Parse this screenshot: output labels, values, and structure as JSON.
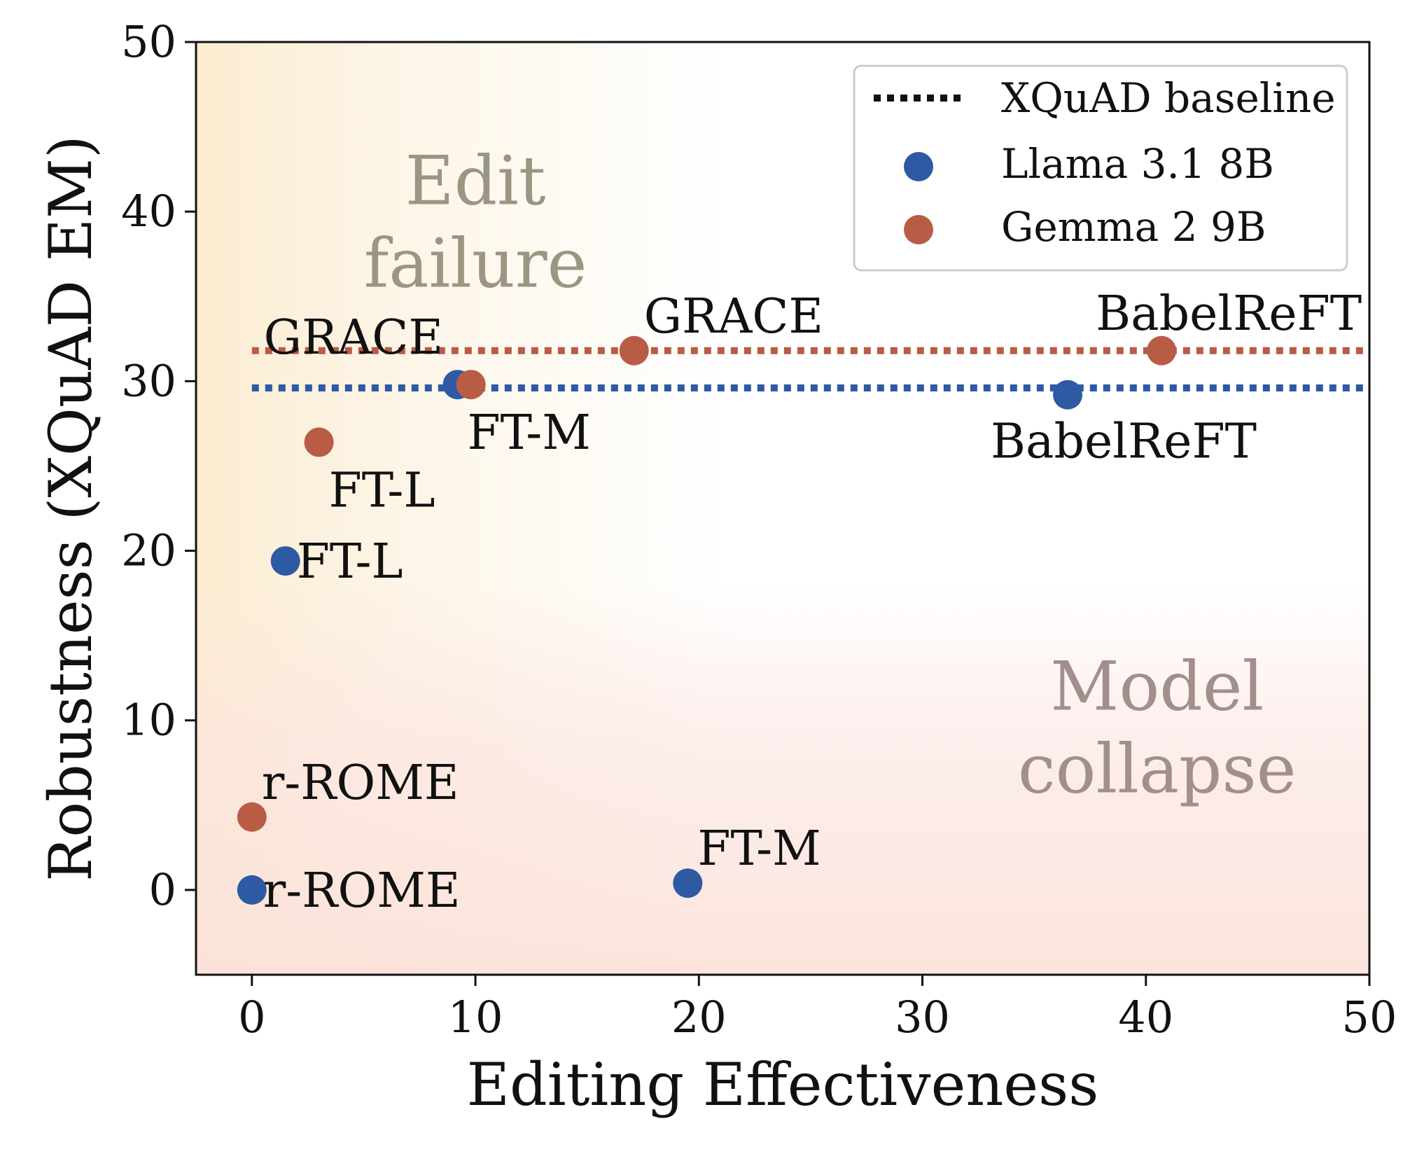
{
  "chart_data": {
    "type": "scatter",
    "xlabel": "Editing Effectiveness",
    "ylabel": "Robustness (XQuAD EM)",
    "xlim": [
      -2.5,
      50
    ],
    "ylim": [
      -5,
      50
    ],
    "xticks": [
      0,
      10,
      20,
      30,
      40,
      50
    ],
    "yticks": [
      0,
      10,
      20,
      30,
      40,
      50
    ],
    "grid": false,
    "legend_position": "top-right",
    "legend": {
      "baseline": "XQuAD baseline",
      "series": [
        "Llama 3.1 8B",
        "Gemma 2 9B"
      ]
    },
    "regions": [
      {
        "text": [
          "Edit",
          "failure"
        ],
        "color": "#9a9682"
      },
      {
        "text": [
          "Model",
          "collapse"
        ],
        "color": "#a28f8b"
      }
    ],
    "baselines": [
      {
        "series": "Gemma 2 9B",
        "y": 31.8,
        "color": "#b85c46"
      },
      {
        "series": "Llama 3.1 8B",
        "y": 29.6,
        "color": "#2d5aa3"
      }
    ],
    "series": [
      {
        "name": "Llama 3.1 8B",
        "color": "#2d5aa3",
        "points": [
          {
            "x": 1.5,
            "y": 19.4,
            "label": "FT-L",
            "label_pos": "right"
          },
          {
            "x": 9.2,
            "y": 29.8,
            "label": "FT-M",
            "label_pos": "below-right"
          },
          {
            "x": 0.0,
            "y": 0.0,
            "label": "r-ROME",
            "label_pos": "right"
          },
          {
            "x": 19.5,
            "y": 0.4,
            "label": "FT-M",
            "label_pos": "above-right"
          },
          {
            "x": 36.5,
            "y": 29.2,
            "label": "BabelReFT",
            "label_pos": "below"
          }
        ]
      },
      {
        "name": "Gemma 2 9B",
        "color": "#b85c46",
        "points": [
          {
            "x": 3.0,
            "y": 26.4,
            "label": "FT-L",
            "label_pos": "below-right"
          },
          {
            "x": 9.8,
            "y": 29.8,
            "label": "GRACE",
            "label_pos": "above-left"
          },
          {
            "x": 17.1,
            "y": 31.8,
            "label": "GRACE",
            "label_pos": "above-right"
          },
          {
            "x": 0.0,
            "y": 4.3,
            "label": "r-ROME",
            "label_pos": "above-right"
          },
          {
            "x": 40.7,
            "y": 31.8,
            "label": "BabelReFT",
            "label_pos": "above-right"
          }
        ]
      }
    ]
  }
}
